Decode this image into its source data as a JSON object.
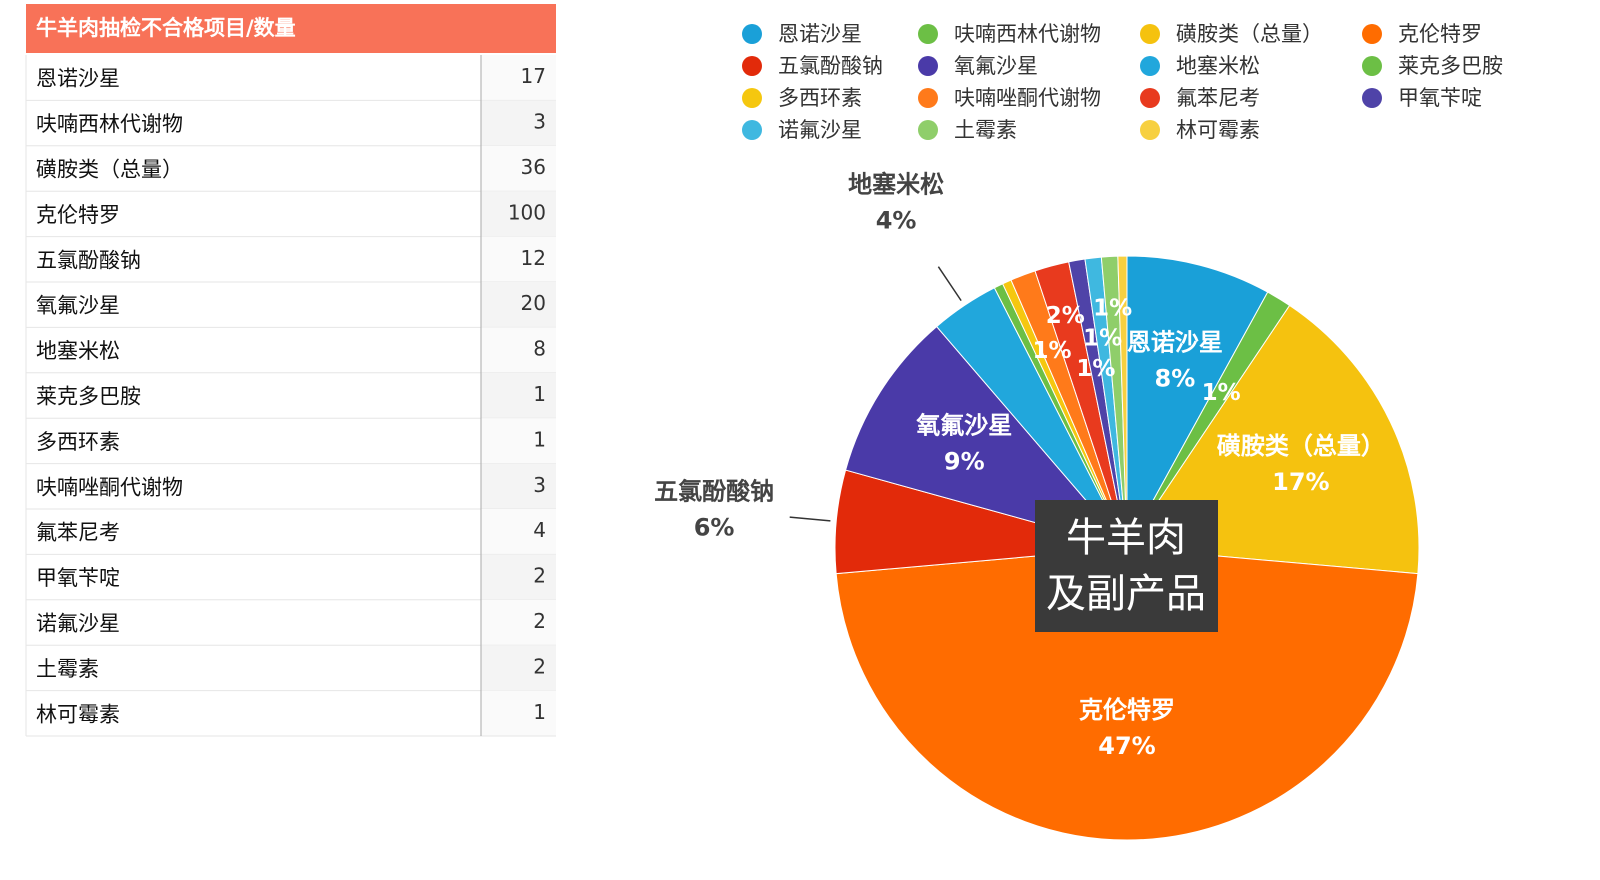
{
  "table": {
    "title": "牛羊肉抽检不合格项目/数量",
    "rows": [
      [
        "恩诺沙星",
        17
      ],
      [
        "呋喃西林代谢物",
        3
      ],
      [
        "磺胺类（总量）",
        36
      ],
      [
        "克伦特罗",
        100
      ],
      [
        "五氯酚酸钠",
        12
      ],
      [
        "氧氟沙星",
        20
      ],
      [
        "地塞米松",
        8
      ],
      [
        "莱克多巴胺",
        1
      ],
      [
        "多西环素",
        1
      ],
      [
        "呋喃唑酮代谢物",
        3
      ],
      [
        "氟苯尼考",
        4
      ],
      [
        "甲氧苄啶",
        2
      ],
      [
        "诺氟沙星",
        2
      ],
      [
        "土霉素",
        2
      ],
      [
        "林可霉素",
        1
      ]
    ]
  },
  "chart_data": {
    "type": "pie",
    "center_label": [
      "牛羊肉",
      "及副产品"
    ],
    "categories": [
      "恩诺沙星",
      "呋喃西林代谢物",
      "磺胺类（总量）",
      "克伦特罗",
      "五氯酚酸钠",
      "氧氟沙星",
      "地塞米松",
      "莱克多巴胺",
      "多西环素",
      "呋喃唑酮代谢物",
      "氟苯尼考",
      "甲氧苄啶",
      "诺氟沙星",
      "土霉素",
      "林可霉素"
    ],
    "values": [
      8.0,
      1.4,
      17.0,
      47.2,
      5.7,
      9.4,
      3.8,
      0.5,
      0.5,
      1.4,
      1.9,
      0.9,
      0.9,
      0.9,
      0.5
    ],
    "value_labels": [
      "8%",
      "1%",
      "17%",
      "47%",
      "6%",
      "9%",
      "4%",
      null,
      null,
      "1%",
      "2%",
      "1%",
      "1%",
      "1%",
      null
    ],
    "colors": [
      "#1aa0d8",
      "#6cbf45",
      "#f5c20f",
      "#ff6c00",
      "#e22a0a",
      "#4a3aa8",
      "#21a7dc",
      "#6cbf45",
      "#f5c70f",
      "#ff7a1a",
      "#e83a1e",
      "#4f43a8",
      "#3fb8e0",
      "#8fce6a",
      "#f7d040"
    ],
    "legend": "top"
  }
}
